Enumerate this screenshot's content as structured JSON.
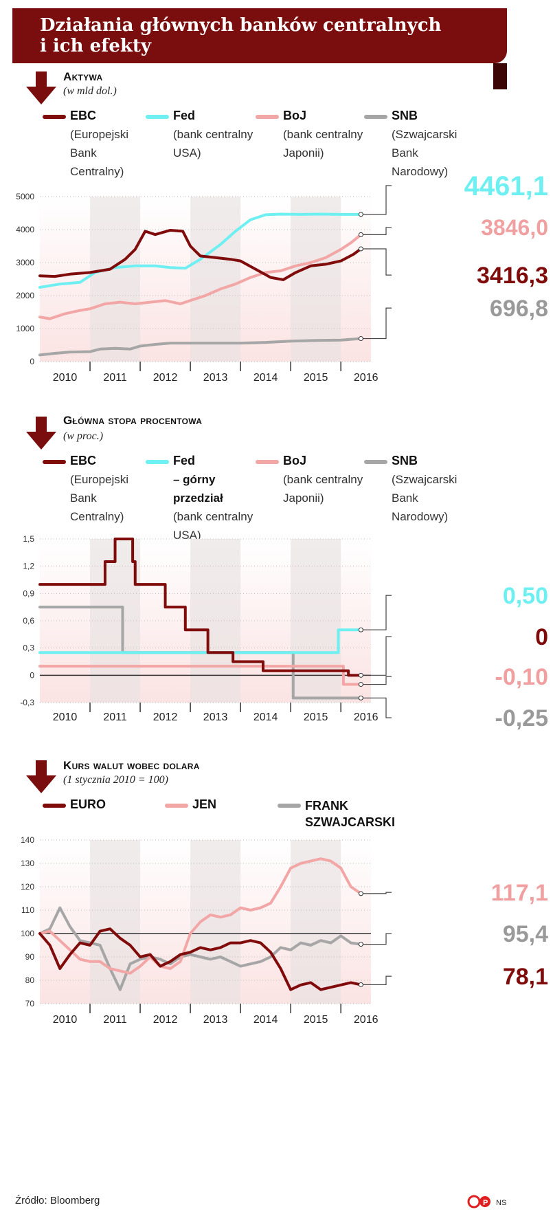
{
  "header": {
    "title": "Działania głównych banków centralnych\ni ich efekty"
  },
  "colors": {
    "ebc": "#800b0b",
    "fed": "#6ef0f2",
    "boj": "#f2a6a6",
    "snb": "#a6a6a6",
    "banner": "#7a0d0d"
  },
  "sections": [
    {
      "title": "Aktywa",
      "subtitle": "(w mld dol.)",
      "legend": [
        {
          "name": "EBC",
          "desc": "(Europejski Bank Centralny)",
          "color": "#800b0b"
        },
        {
          "name": "Fed",
          "desc": "(bank centralny USA)",
          "color": "#6ef0f2"
        },
        {
          "name": "BoJ",
          "desc": "(bank centralny Japonii)",
          "color": "#f2a6a6"
        },
        {
          "name": "SNB",
          "desc": "(Szwajcarski Bank Narodowy)",
          "color": "#a6a6a6"
        }
      ]
    },
    {
      "title": "Główna stopa procentowa",
      "subtitle": "(w proc.)",
      "legend": [
        {
          "name": "EBC",
          "desc": "(Europejski Bank Centralny)",
          "color": "#800b0b"
        },
        {
          "name": "Fed",
          "bold2": "– górny przedział",
          "desc": "(bank centralny USA)",
          "color": "#6ef0f2"
        },
        {
          "name": "BoJ",
          "desc": "(bank centralny Japonii)",
          "color": "#f2a6a6"
        },
        {
          "name": "SNB",
          "desc": "(Szwajcarski Bank Narodowy)",
          "color": "#a6a6a6"
        }
      ]
    },
    {
      "title": "Kurs walut wobec dolara",
      "subtitle": "(1 stycznia 2010 = 100)",
      "legend": [
        {
          "name": "EURO",
          "desc": "",
          "color": "#800b0b"
        },
        {
          "name": "JEN",
          "desc": "",
          "color": "#f2a6a6"
        },
        {
          "name": "FRANK SZWAJCARSKI",
          "desc": "",
          "color": "#a6a6a6"
        }
      ]
    }
  ],
  "chart_data": [
    {
      "type": "line",
      "title": "Aktywa",
      "unit": "(w mld dol.)",
      "x_ticks": [
        "2010",
        "2011",
        "2012",
        "2013",
        "2014",
        "2015",
        "2016"
      ],
      "xlim": [
        2010.0,
        2016.6
      ],
      "ylim": [
        0,
        5000
      ],
      "y_ticks": [
        0,
        1000,
        2000,
        3000,
        4000,
        5000
      ],
      "y_tick_labels": [
        "0",
        "1000",
        "2000",
        "3000",
        "4000",
        "5000"
      ],
      "series": [
        {
          "name": "EBC",
          "color": "#800b0b",
          "end_label": "3416,3",
          "x": [
            2010.0,
            2010.3,
            2010.6,
            2011.0,
            2011.4,
            2011.7,
            2011.9,
            2012.1,
            2012.3,
            2012.6,
            2012.85,
            2013.0,
            2013.2,
            2013.5,
            2013.8,
            2014.0,
            2014.3,
            2014.6,
            2014.85,
            2015.1,
            2015.4,
            2015.7,
            2016.0,
            2016.25,
            2016.4
          ],
          "y": [
            2600,
            2580,
            2650,
            2700,
            2800,
            3100,
            3400,
            3950,
            3850,
            3980,
            3950,
            3500,
            3200,
            3150,
            3100,
            3050,
            2800,
            2550,
            2480,
            2700,
            2900,
            2950,
            3050,
            3250,
            3416.3
          ]
        },
        {
          "name": "Fed",
          "color": "#6ef0f2",
          "end_label": "4461,1",
          "x": [
            2010.0,
            2010.4,
            2010.8,
            2011.1,
            2011.5,
            2011.9,
            2012.3,
            2012.6,
            2012.9,
            2013.2,
            2013.6,
            2013.9,
            2014.2,
            2014.5,
            2014.8,
            2015.2,
            2015.6,
            2016.0,
            2016.4
          ],
          "y": [
            2250,
            2350,
            2400,
            2700,
            2850,
            2900,
            2900,
            2850,
            2830,
            3100,
            3550,
            3950,
            4300,
            4450,
            4470,
            4460,
            4470,
            4460,
            4461.1
          ]
        },
        {
          "name": "BoJ",
          "color": "#f2a6a6",
          "end_label": "3846,0",
          "x": [
            2010.0,
            2010.2,
            2010.5,
            2010.8,
            2011.0,
            2011.3,
            2011.6,
            2011.9,
            2012.2,
            2012.5,
            2012.8,
            2013.0,
            2013.3,
            2013.6,
            2013.9,
            2014.2,
            2014.5,
            2014.8,
            2015.1,
            2015.4,
            2015.7,
            2016.0,
            2016.2,
            2016.4
          ],
          "y": [
            1350,
            1300,
            1450,
            1550,
            1600,
            1750,
            1800,
            1750,
            1800,
            1850,
            1750,
            1850,
            2000,
            2200,
            2350,
            2550,
            2700,
            2750,
            2900,
            3000,
            3150,
            3400,
            3600,
            3846.0
          ]
        },
        {
          "name": "SNB",
          "color": "#a6a6a6",
          "end_label": "696,8",
          "x": [
            2010.0,
            2010.3,
            2010.6,
            2011.0,
            2011.2,
            2011.5,
            2011.8,
            2012.0,
            2012.3,
            2012.6,
            2013.0,
            2013.5,
            2014.0,
            2014.5,
            2015.0,
            2015.5,
            2016.0,
            2016.4
          ],
          "y": [
            200,
            250,
            290,
            300,
            380,
            400,
            380,
            470,
            520,
            560,
            560,
            560,
            560,
            580,
            620,
            640,
            650,
            696.8
          ]
        }
      ]
    },
    {
      "type": "line",
      "title": "Główna stopa procentowa",
      "unit": "(w proc.)",
      "x_ticks": [
        "2010",
        "2011",
        "2012",
        "2013",
        "2014",
        "2015",
        "2016"
      ],
      "xlim": [
        2010.0,
        2016.6
      ],
      "ylim": [
        -0.3,
        1.5
      ],
      "y_ticks": [
        -0.3,
        0,
        0.3,
        0.6,
        0.9,
        1.2,
        1.5
      ],
      "y_tick_labels": [
        "-0,3",
        "0",
        "0,3",
        "0,6",
        "0,9",
        "1,2",
        "1,5"
      ],
      "series": [
        {
          "name": "EBC",
          "color": "#800b0b",
          "end_label": "0",
          "step_x": [
            2010.0,
            2011.3,
            2011.5,
            2011.85,
            2011.9,
            2012.5,
            2012.9,
            2013.35,
            2013.85,
            2014.45,
            2014.7,
            2016.15,
            2016.4
          ],
          "step_y": [
            1.0,
            1.25,
            1.5,
            1.25,
            1.0,
            0.75,
            0.5,
            0.25,
            0.15,
            0.05,
            0.05,
            0.0,
            0.0
          ]
        },
        {
          "name": "Fed",
          "color": "#6ef0f2",
          "end_label": "0,50",
          "step_x": [
            2010.0,
            2015.95,
            2016.4
          ],
          "step_y": [
            0.25,
            0.5,
            0.5
          ]
        },
        {
          "name": "BoJ",
          "color": "#f2a6a6",
          "end_label": "-0,10",
          "step_x": [
            2010.0,
            2016.05,
            2016.4
          ],
          "step_y": [
            0.1,
            -0.1,
            -0.1
          ]
        },
        {
          "name": "SNB",
          "color": "#a6a6a6",
          "end_label": "-0,25",
          "step_x": [
            2010.0,
            2011.65,
            2014.95,
            2015.05,
            2016.4
          ],
          "step_y": [
            0.75,
            0.25,
            0.25,
            -0.25,
            -0.25
          ]
        }
      ]
    },
    {
      "type": "line",
      "title": "Kurs walut wobec dolara",
      "unit": "(1 stycznia 2010 = 100)",
      "x_ticks": [
        "2010",
        "2011",
        "2012",
        "2013",
        "2014",
        "2015",
        "2016"
      ],
      "xlim": [
        2010.0,
        2016.6
      ],
      "ylim": [
        70,
        140
      ],
      "y_ticks": [
        70,
        80,
        90,
        100,
        110,
        120,
        130,
        140
      ],
      "y_tick_labels": [
        "70",
        "80",
        "90",
        "100",
        "110",
        "120",
        "130",
        "140"
      ],
      "reference": 100,
      "series": [
        {
          "name": "EURO",
          "color": "#800b0b",
          "end_label": "78,1",
          "x": [
            2010.0,
            2010.2,
            2010.4,
            2010.6,
            2010.8,
            2011.0,
            2011.2,
            2011.4,
            2011.6,
            2011.8,
            2012.0,
            2012.2,
            2012.4,
            2012.6,
            2012.8,
            2013.0,
            2013.2,
            2013.4,
            2013.6,
            2013.8,
            2014.0,
            2014.2,
            2014.4,
            2014.6,
            2014.8,
            2015.0,
            2015.2,
            2015.4,
            2015.6,
            2015.8,
            2016.0,
            2016.2,
            2016.4
          ],
          "y": [
            100,
            95,
            85,
            91,
            96,
            95,
            101,
            102,
            98,
            95,
            90,
            91,
            86,
            88,
            91,
            92,
            94,
            93,
            94,
            96,
            96,
            97,
            96,
            92,
            85,
            76,
            78,
            79,
            76,
            77,
            78,
            79,
            78.1
          ]
        },
        {
          "name": "JEN",
          "color": "#f2a6a6",
          "end_label": "117,1",
          "x": [
            2010.0,
            2010.2,
            2010.4,
            2010.6,
            2010.8,
            2011.0,
            2011.2,
            2011.4,
            2011.6,
            2011.8,
            2012.0,
            2012.2,
            2012.4,
            2012.6,
            2012.8,
            2013.0,
            2013.2,
            2013.4,
            2013.6,
            2013.8,
            2014.0,
            2014.2,
            2014.4,
            2014.6,
            2014.8,
            2015.0,
            2015.2,
            2015.4,
            2015.6,
            2015.8,
            2016.0,
            2016.2,
            2016.4
          ],
          "y": [
            100,
            101,
            97,
            93,
            89,
            88,
            88,
            85,
            84,
            83,
            86,
            90,
            86,
            85,
            88,
            100,
            105,
            108,
            107,
            108,
            111,
            110,
            111,
            113,
            120,
            128,
            130,
            131,
            132,
            131,
            128,
            120,
            117.1
          ]
        },
        {
          "name": "FRANK SZWAJCARSKI",
          "color": "#a6a6a6",
          "end_label": "95,4",
          "x": [
            2010.0,
            2010.2,
            2010.4,
            2010.6,
            2010.8,
            2011.0,
            2011.2,
            2011.4,
            2011.6,
            2011.8,
            2012.0,
            2012.2,
            2012.4,
            2012.6,
            2012.8,
            2013.0,
            2013.2,
            2013.4,
            2013.6,
            2013.8,
            2014.0,
            2014.2,
            2014.4,
            2014.6,
            2014.8,
            2015.0,
            2015.2,
            2015.4,
            2015.6,
            2015.8,
            2016.0,
            2016.2,
            2016.4
          ],
          "y": [
            100,
            102,
            111,
            103,
            97,
            96,
            95,
            85,
            76,
            87,
            89,
            90,
            89,
            87,
            90,
            91,
            90,
            89,
            90,
            88,
            86,
            87,
            88,
            90,
            94,
            93,
            96,
            95,
            97,
            96,
            99,
            96,
            95.4
          ]
        }
      ]
    }
  ],
  "footer": {
    "source": "Źródło: Bloomberg",
    "author": "NS"
  }
}
